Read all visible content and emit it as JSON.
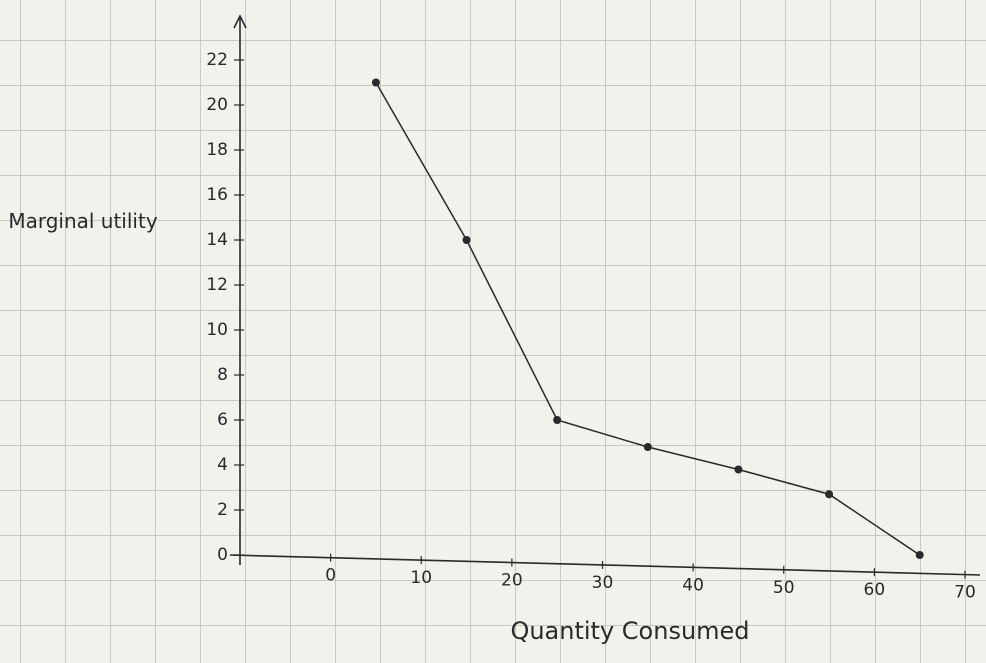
{
  "chart_data": {
    "type": "line",
    "y_label": "Marginal utility",
    "x_label": "Quantity Consumed",
    "x": [
      5,
      15,
      25,
      35,
      45,
      55,
      65
    ],
    "series": [
      {
        "color": "#2a2a2a",
        "values": [
          21,
          14,
          6,
          4.8,
          3.8,
          2.7,
          0
        ]
      }
    ],
    "xlim": [
      -10,
      70
    ],
    "xticks": [
      0,
      10,
      20,
      30,
      40,
      50,
      60,
      70
    ],
    "ylim": [
      0,
      22
    ],
    "yticks": [
      0,
      2,
      4,
      6,
      8,
      10,
      12,
      14,
      16,
      18,
      20,
      22
    ]
  }
}
